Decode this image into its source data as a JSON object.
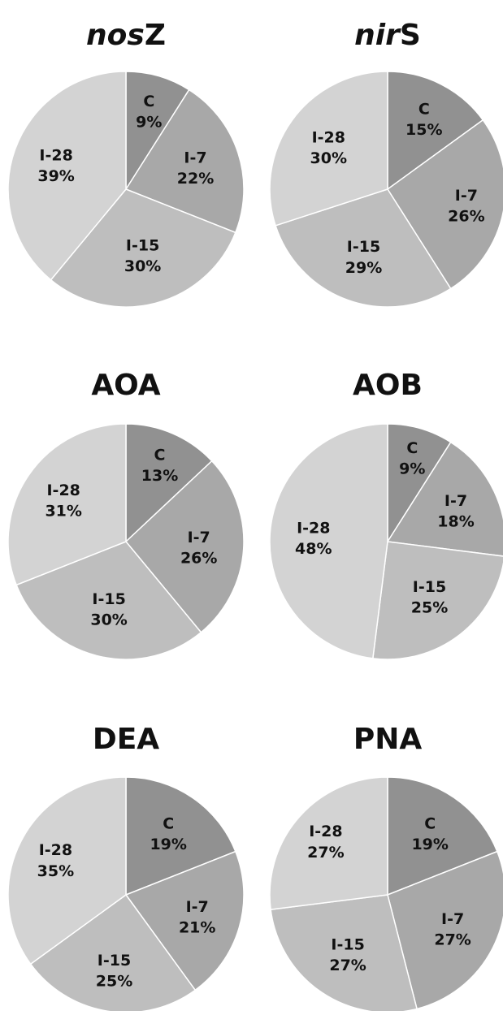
{
  "colors": {
    "C": "#919191",
    "I-7": "#a8a8a8",
    "I-15": "#bebebe",
    "I-28": "#d3d3d3",
    "text": "#111111",
    "edge": "#ffffff"
  },
  "chart_data": [
    {
      "type": "pie",
      "title_parts": [
        {
          "text": "nos",
          "italic": true
        },
        {
          "text": "Z",
          "italic": false
        }
      ],
      "slices": [
        {
          "name": "C",
          "value": 9,
          "label": "9%"
        },
        {
          "name": "I-7",
          "value": 22,
          "label": "22%"
        },
        {
          "name": "I-15",
          "value": 30,
          "label": "30%"
        },
        {
          "name": "I-28",
          "value": 39,
          "label": "39%"
        }
      ]
    },
    {
      "type": "pie",
      "title_parts": [
        {
          "text": "nir",
          "italic": true
        },
        {
          "text": "S",
          "italic": false
        }
      ],
      "slices": [
        {
          "name": "C",
          "value": 15,
          "label": "15%"
        },
        {
          "name": "I-7",
          "value": 26,
          "label": "26%"
        },
        {
          "name": "I-15",
          "value": 29,
          "label": "29%"
        },
        {
          "name": "I-28",
          "value": 30,
          "label": "30%"
        }
      ]
    },
    {
      "type": "pie",
      "title_parts": [
        {
          "text": "AOA",
          "italic": false
        }
      ],
      "slices": [
        {
          "name": "C",
          "value": 13,
          "label": "13%"
        },
        {
          "name": "I-7",
          "value": 26,
          "label": "26%"
        },
        {
          "name": "I-15",
          "value": 30,
          "label": "30%"
        },
        {
          "name": "I-28",
          "value": 31,
          "label": "31%"
        }
      ]
    },
    {
      "type": "pie",
      "title_parts": [
        {
          "text": "AOB",
          "italic": false
        }
      ],
      "slices": [
        {
          "name": "C",
          "value": 9,
          "label": "9%"
        },
        {
          "name": "I-7",
          "value": 18,
          "label": "18%"
        },
        {
          "name": "I-15",
          "value": 25,
          "label": "25%"
        },
        {
          "name": "I-28",
          "value": 48,
          "label": "48%"
        }
      ]
    },
    {
      "type": "pie",
      "title_parts": [
        {
          "text": "DEA",
          "italic": false
        }
      ],
      "slices": [
        {
          "name": "C",
          "value": 19,
          "label": "19%"
        },
        {
          "name": "I-7",
          "value": 21,
          "label": "21%"
        },
        {
          "name": "I-15",
          "value": 25,
          "label": "25%"
        },
        {
          "name": "I-28",
          "value": 35,
          "label": "35%"
        }
      ]
    },
    {
      "type": "pie",
      "title_parts": [
        {
          "text": "PNA",
          "italic": false
        }
      ],
      "slices": [
        {
          "name": "C",
          "value": 19,
          "label": "19%"
        },
        {
          "name": "I-7",
          "value": 27,
          "label": "27%"
        },
        {
          "name": "I-15",
          "value": 27,
          "label": "27%"
        },
        {
          "name": "I-28",
          "value": 27,
          "label": "27%"
        }
      ]
    }
  ]
}
